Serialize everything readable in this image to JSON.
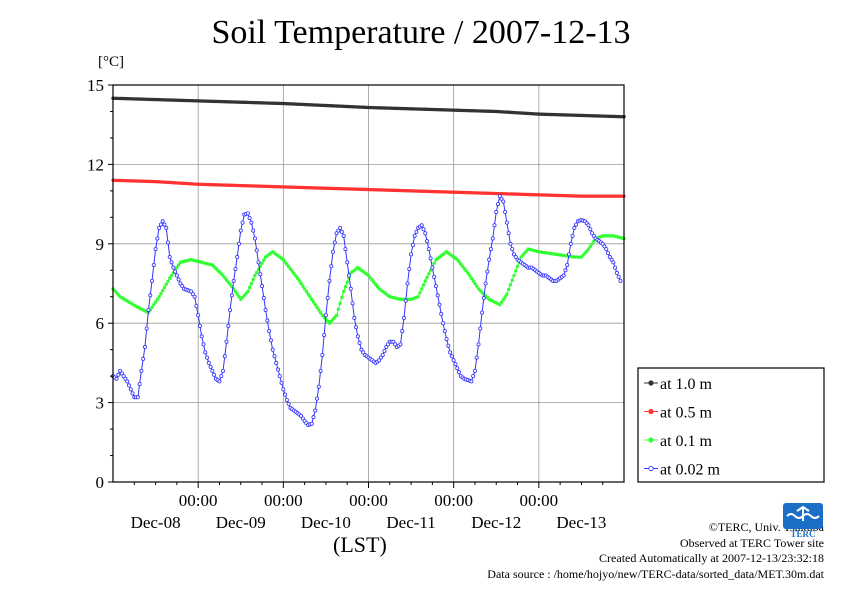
{
  "chart_data": {
    "type": "line",
    "title": "Soil Temperature / 2007-12-13",
    "ylabel": "[°C]",
    "xlabel": "(LST)",
    "ylim": [
      0,
      15
    ],
    "yticks": [
      0,
      3,
      6,
      9,
      12,
      15
    ],
    "xlim_hours": [
      0,
      144
    ],
    "x_tick_labels": [
      "00:00",
      "00:00",
      "00:00",
      "00:00",
      "00:00"
    ],
    "x_tick_hours": [
      24,
      48,
      72,
      96,
      120
    ],
    "x_day_labels": [
      "Dec-08",
      "Dec-09",
      "Dec-10",
      "Dec-11",
      "Dec-12",
      "Dec-13"
    ],
    "grid": true,
    "legend_position": "right",
    "series": [
      {
        "name": "at 1.0 m",
        "color": "#333333",
        "points": [
          [
            0,
            14.5
          ],
          [
            24,
            14.4
          ],
          [
            48,
            14.3
          ],
          [
            72,
            14.15
          ],
          [
            96,
            14.05
          ],
          [
            108,
            14.0
          ],
          [
            120,
            13.9
          ],
          [
            144,
            13.8
          ]
        ]
      },
      {
        "name": "at 0.5 m",
        "color": "#ff3333",
        "points": [
          [
            0,
            11.4
          ],
          [
            12,
            11.35
          ],
          [
            24,
            11.25
          ],
          [
            48,
            11.15
          ],
          [
            72,
            11.05
          ],
          [
            96,
            10.95
          ],
          [
            108,
            10.9
          ],
          [
            120,
            10.85
          ],
          [
            132,
            10.8
          ],
          [
            144,
            10.8
          ]
        ]
      },
      {
        "name": "at 0.1 m",
        "color": "#33ff33",
        "points": [
          [
            0,
            7.3
          ],
          [
            2,
            7.0
          ],
          [
            7,
            6.6
          ],
          [
            10,
            6.4
          ],
          [
            13,
            7.0
          ],
          [
            16,
            7.7
          ],
          [
            19,
            8.3
          ],
          [
            22,
            8.4
          ],
          [
            25,
            8.3
          ],
          [
            28,
            8.2
          ],
          [
            31,
            7.8
          ],
          [
            34,
            7.3
          ],
          [
            36,
            6.9
          ],
          [
            38,
            7.2
          ],
          [
            40,
            7.8
          ],
          [
            43,
            8.5
          ],
          [
            45,
            8.7
          ],
          [
            48,
            8.4
          ],
          [
            52,
            7.7
          ],
          [
            56,
            6.9
          ],
          [
            59,
            6.3
          ],
          [
            61,
            6.0
          ],
          [
            63,
            6.3
          ],
          [
            65,
            7.2
          ],
          [
            67,
            7.9
          ],
          [
            69,
            8.1
          ],
          [
            72,
            7.8
          ],
          [
            75,
            7.3
          ],
          [
            78,
            7.0
          ],
          [
            81,
            6.9
          ],
          [
            84,
            6.9
          ],
          [
            86,
            7.0
          ],
          [
            88,
            7.6
          ],
          [
            91,
            8.4
          ],
          [
            94,
            8.7
          ],
          [
            97,
            8.4
          ],
          [
            100,
            7.9
          ],
          [
            103,
            7.3
          ],
          [
            106,
            6.9
          ],
          [
            109,
            6.7
          ],
          [
            111,
            7.1
          ],
          [
            113,
            7.8
          ],
          [
            115,
            8.5
          ],
          [
            117,
            8.8
          ],
          [
            120,
            8.7
          ],
          [
            125,
            8.6
          ],
          [
            130,
            8.5
          ],
          [
            132,
            8.5
          ],
          [
            134,
            8.8
          ],
          [
            136,
            9.2
          ],
          [
            138,
            9.3
          ],
          [
            141,
            9.3
          ],
          [
            144,
            9.2
          ]
        ]
      },
      {
        "name": "at 0.02 m",
        "color": "#3333ff",
        "points": [
          [
            0,
            4.0
          ],
          [
            1,
            3.9
          ],
          [
            2,
            4.2
          ],
          [
            4,
            3.8
          ],
          [
            6,
            3.2
          ],
          [
            7,
            3.2
          ],
          [
            8,
            4.2
          ],
          [
            9,
            5.1
          ],
          [
            10,
            6.5
          ],
          [
            11,
            7.6
          ],
          [
            12,
            8.8
          ],
          [
            13,
            9.6
          ],
          [
            14,
            9.85
          ],
          [
            15,
            9.6
          ],
          [
            16,
            8.5
          ],
          [
            17,
            8.1
          ],
          [
            18,
            7.8
          ],
          [
            19,
            7.5
          ],
          [
            20,
            7.3
          ],
          [
            22,
            7.2
          ],
          [
            23,
            7.0
          ],
          [
            24,
            6.3
          ],
          [
            25,
            5.5
          ],
          [
            26,
            4.9
          ],
          [
            27,
            4.5
          ],
          [
            28,
            4.2
          ],
          [
            29,
            3.9
          ],
          [
            30,
            3.8
          ],
          [
            31,
            4.2
          ],
          [
            32,
            5.3
          ],
          [
            33,
            6.5
          ],
          [
            34,
            7.6
          ],
          [
            35,
            8.5
          ],
          [
            36,
            9.5
          ],
          [
            37,
            10.1
          ],
          [
            38,
            10.15
          ],
          [
            39,
            9.8
          ],
          [
            40,
            9.2
          ],
          [
            41,
            8.3
          ],
          [
            42,
            7.4
          ],
          [
            43,
            6.5
          ],
          [
            44,
            5.7
          ],
          [
            45,
            5.0
          ],
          [
            46,
            4.5
          ],
          [
            47,
            4.0
          ],
          [
            48,
            3.5
          ],
          [
            49,
            3.1
          ],
          [
            50,
            2.8
          ],
          [
            51,
            2.7
          ],
          [
            52,
            2.6
          ],
          [
            53,
            2.5
          ],
          [
            54,
            2.3
          ],
          [
            55,
            2.15
          ],
          [
            56,
            2.2
          ],
          [
            57,
            2.7
          ],
          [
            58,
            3.6
          ],
          [
            59,
            4.8
          ],
          [
            60,
            6.3
          ],
          [
            61,
            7.6
          ],
          [
            62,
            8.7
          ],
          [
            63,
            9.4
          ],
          [
            64,
            9.6
          ],
          [
            65,
            9.3
          ],
          [
            66,
            8.3
          ],
          [
            67,
            7.3
          ],
          [
            68,
            6.2
          ],
          [
            69,
            5.5
          ],
          [
            70,
            5.0
          ],
          [
            71,
            4.8
          ],
          [
            72,
            4.7
          ],
          [
            73,
            4.6
          ],
          [
            74,
            4.5
          ],
          [
            75,
            4.6
          ],
          [
            76,
            4.8
          ],
          [
            77,
            5.1
          ],
          [
            78,
            5.3
          ],
          [
            79,
            5.3
          ],
          [
            80,
            5.1
          ],
          [
            81,
            5.2
          ],
          [
            82,
            6.2
          ],
          [
            83,
            7.5
          ],
          [
            84,
            8.6
          ],
          [
            85,
            9.3
          ],
          [
            86,
            9.6
          ],
          [
            87,
            9.7
          ],
          [
            88,
            9.4
          ],
          [
            89,
            8.8
          ],
          [
            90,
            8.1
          ],
          [
            91,
            7.4
          ],
          [
            92,
            6.7
          ],
          [
            93,
            6.0
          ],
          [
            94,
            5.4
          ],
          [
            95,
            4.9
          ],
          [
            96,
            4.6
          ],
          [
            97,
            4.3
          ],
          [
            98,
            4.0
          ],
          [
            99,
            3.9
          ],
          [
            100,
            3.85
          ],
          [
            101,
            3.8
          ],
          [
            102,
            4.2
          ],
          [
            103,
            5.2
          ],
          [
            104,
            6.4
          ],
          [
            105,
            7.5
          ],
          [
            106,
            8.4
          ],
          [
            107,
            9.2
          ],
          [
            108,
            10.2
          ],
          [
            109,
            10.8
          ],
          [
            110,
            10.6
          ],
          [
            111,
            9.8
          ],
          [
            112,
            9.0
          ],
          [
            113,
            8.6
          ],
          [
            114,
            8.4
          ],
          [
            115,
            8.3
          ],
          [
            116,
            8.2
          ],
          [
            117,
            8.1
          ],
          [
            118,
            8.1
          ],
          [
            119,
            8.0
          ],
          [
            120,
            7.9
          ],
          [
            121,
            7.8
          ],
          [
            122,
            7.8
          ],
          [
            123,
            7.7
          ],
          [
            124,
            7.6
          ],
          [
            125,
            7.6
          ],
          [
            126,
            7.7
          ],
          [
            127,
            7.8
          ],
          [
            128,
            8.2
          ],
          [
            129,
            9.0
          ],
          [
            130,
            9.6
          ],
          [
            131,
            9.85
          ],
          [
            132,
            9.9
          ],
          [
            133,
            9.85
          ],
          [
            134,
            9.7
          ],
          [
            135,
            9.4
          ],
          [
            136,
            9.2
          ],
          [
            137,
            9.1
          ],
          [
            138,
            9.0
          ],
          [
            139,
            8.8
          ],
          [
            140,
            8.5
          ],
          [
            141,
            8.3
          ],
          [
            142,
            7.9
          ],
          [
            143,
            7.6
          ]
        ]
      }
    ]
  },
  "footer": {
    "copyright": "©TERC, Univ. Tsukuba",
    "site": "Observed at TERC Tower site",
    "created": "Created Automatically at 2007-12-13/23:32:18",
    "source": "Data source : /home/hojyo/new/TERC-data/sorted_data/MET.30m.dat"
  },
  "logo": {
    "text": "TERC",
    "color": "#1b6fc6"
  }
}
